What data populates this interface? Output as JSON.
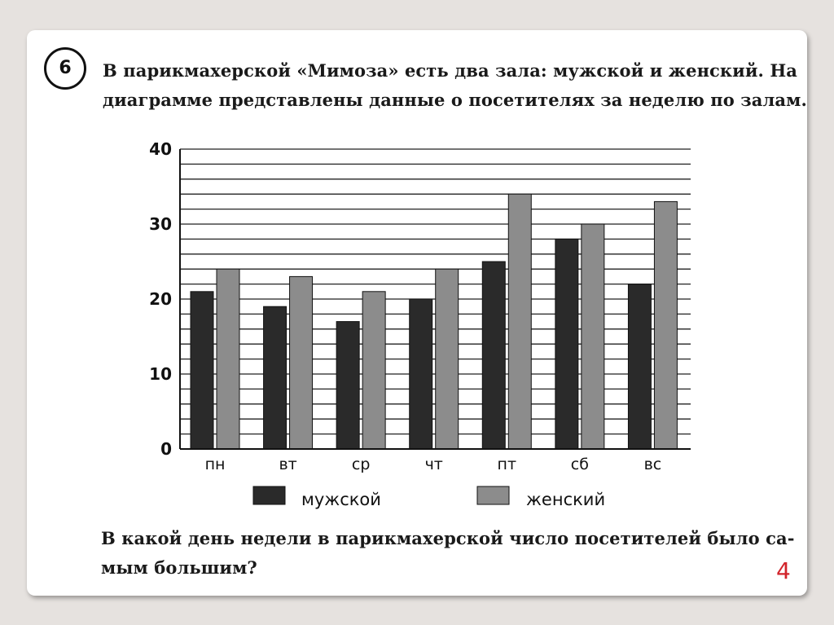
{
  "task": {
    "number": "6",
    "text_line1": "В парикмахерской «Мимоза» есть два зала: мужской и женский. На",
    "text_line2": "диаграмме представлены данные о посетителях за неделю по залам.",
    "question_line1": "В какой день недели в парикмахерской число посетителей было са-",
    "question_line2": "мым большим?"
  },
  "slide_number": "4",
  "chart_data": {
    "type": "bar",
    "categories": [
      "пн",
      "вт",
      "ср",
      "чт",
      "пт",
      "сб",
      "вс"
    ],
    "series": [
      {
        "name": "мужской",
        "values": [
          21,
          19,
          17,
          20,
          25,
          28,
          22
        ],
        "color": "#2a2a2a"
      },
      {
        "name": "женский",
        "values": [
          24,
          23,
          21,
          24,
          34,
          30,
          33
        ],
        "color": "#8c8c8c"
      }
    ],
    "ylim": [
      0,
      40
    ],
    "yticks": [
      0,
      10,
      20,
      30,
      40
    ],
    "minor_grid_step": 2,
    "grid": true,
    "legend_position": "bottom"
  }
}
